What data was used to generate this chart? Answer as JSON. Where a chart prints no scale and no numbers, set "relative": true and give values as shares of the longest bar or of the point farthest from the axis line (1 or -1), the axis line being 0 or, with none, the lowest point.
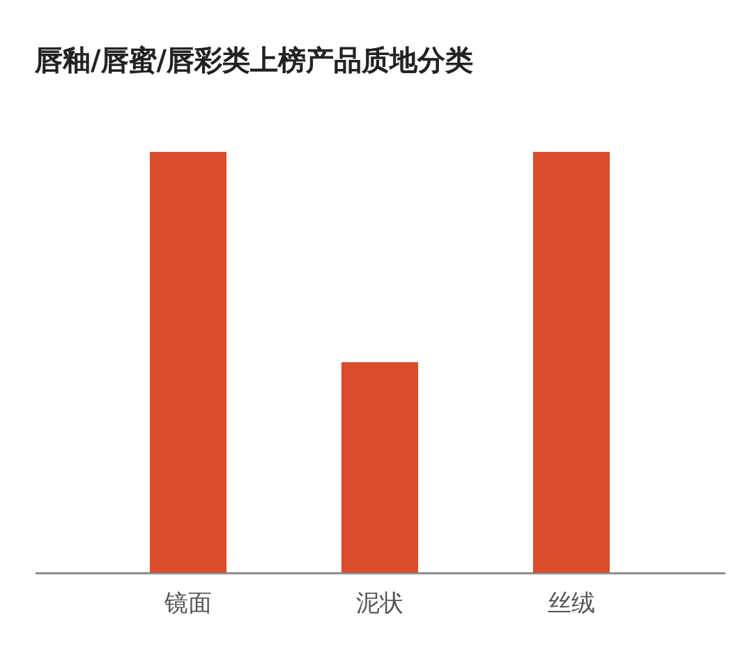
{
  "chart_data": {
    "type": "bar",
    "title": "唇釉/唇蜜/唇彩类上榜产品质地分类",
    "categories": [
      "镜面",
      "泥状",
      "丝绒"
    ],
    "values": [
      1,
      0.5,
      1
    ],
    "color": "#dc4c2b",
    "relative": true
  }
}
